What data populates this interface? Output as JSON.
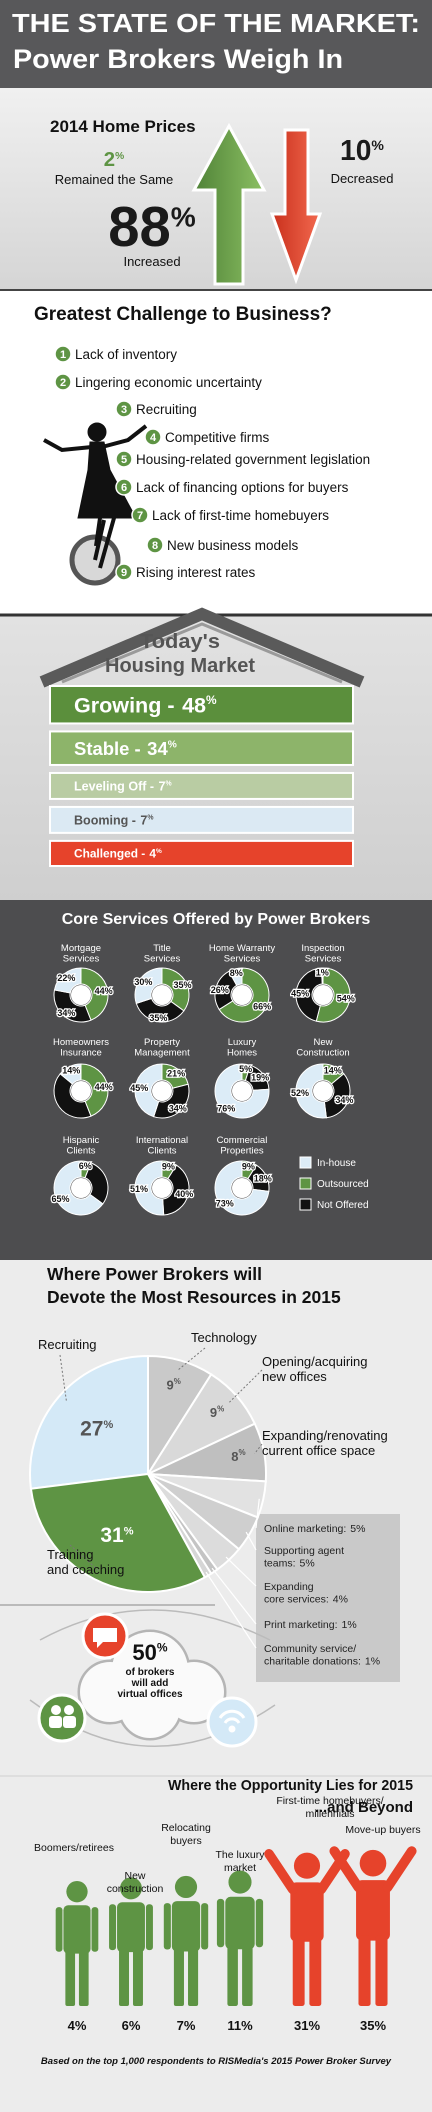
{
  "header": {
    "title": "THE STATE OF THE MARKET:",
    "subtitle": "Power Brokers Weigh In"
  },
  "challenges": {
    "title": "Greatest Challenge to Business?",
    "ranks": [
      1,
      2,
      3,
      4,
      5,
      6,
      7,
      8,
      9
    ],
    "items": [
      "Lack of inventory",
      "Lingering economic uncertainty",
      "Recruiting",
      "Competitive firms",
      "Housing-related government legislation",
      "Lack of financing options for buyers",
      "Lack of first-time homebuyers",
      "New business models",
      "Rising interest rates"
    ]
  },
  "callout": {
    "headline": "50%",
    "text": "of brokers\nwill add\nvirtual offices"
  },
  "footnote": "Based on the top 1,000 respondents to RISMedia's 2015 Power Broker Survey",
  "chart_data": [
    {
      "type": "stat",
      "title": "2014 Home Prices",
      "categories": [
        "Remained the Same",
        "Increased",
        "Decreased"
      ],
      "values": [
        2,
        88,
        10
      ],
      "value_labels": [
        "2%",
        "88%",
        "10%"
      ],
      "colors": [
        "#5e9444",
        "#1a1a1a",
        "#1a1a1a"
      ]
    },
    {
      "type": "hbar",
      "title": "Today's",
      "subtitle": "Housing Market",
      "categories": [
        "Growing -",
        "Stable -",
        "Leveling Off -",
        "Booming -",
        "Challenged -"
      ],
      "values": [
        48,
        34,
        7,
        7,
        4
      ],
      "value_labels": [
        "48%",
        "34%",
        "7%",
        "7%",
        "4%"
      ],
      "colors": [
        "#5b8f3c",
        "#8db46a",
        "#b9cca3",
        "#dbe9f3",
        "#e6432b"
      ]
    },
    {
      "type": "donut",
      "title": "Core Services Offered by Power Brokers",
      "categories": [
        "Mortgage\nServices",
        "Title\nServices",
        "Home Warranty\nServices",
        "Inspection\nServices",
        "Homeowners\nInsurance",
        "Property\nManagement",
        "Luxury\nHomes",
        "New\nConstruction",
        "Hispanic\nClients",
        "International\nClients",
        "Commercial\nProperties"
      ],
      "series": [
        {
          "name": "In-house",
          "color": "#dcecf7",
          "values": [
            22,
            30,
            8,
            1,
            14,
            45,
            76,
            52,
            65,
            51,
            73
          ],
          "value_labels": [
            "22%",
            "30%",
            "8%",
            "1%",
            "14%",
            "45%",
            "76%",
            "52%",
            "65%",
            "51%",
            "73%"
          ]
        },
        {
          "name": "Outsourced",
          "color": "#5e9444",
          "values": [
            44,
            35,
            66,
            54,
            44,
            21,
            5,
            14,
            6,
            9,
            9
          ],
          "value_labels": [
            "44%",
            "35%",
            "66%",
            "54%",
            "44%",
            "21%",
            "5%",
            "14%",
            "6%",
            "9%",
            "9%"
          ]
        },
        {
          "name": "Not Offered",
          "color": "#111111",
          "values": [
            34,
            35,
            26,
            45,
            42,
            34,
            19,
            34,
            29,
            40,
            18
          ],
          "value_labels": [
            "34%",
            "35%",
            "26%",
            "45%",
            null,
            "34%",
            "19%",
            "34%",
            null,
            "40%",
            "18%"
          ]
        }
      ]
    },
    {
      "type": "pie",
      "title": "Where Power Brokers will\nDevote the Most Resources in 2015",
      "categories": [
        "Recruiting",
        "Technology",
        "Opening/acquiring\nnew offices",
        "Expanding/renovating\ncurrent office space",
        "Online marketing:",
        "Supporting agent\nteams:",
        "Expanding\ncore services:",
        "Print marketing:",
        "Community service/\ncharitable donations:",
        "Training\nand coaching"
      ],
      "values": [
        27,
        9,
        9,
        8,
        5,
        5,
        4,
        1,
        1,
        31
      ],
      "value_labels": [
        "27%",
        "9%",
        "9%",
        "8%",
        "5%",
        "5%",
        "4%",
        "1%",
        "1%",
        "31%"
      ],
      "colors": [
        "#d4e9f7",
        "#c9c9c9",
        "#d9d9d9",
        "#bfbfbf",
        "#e2e2e2",
        "#cfcfcf",
        "#dcdcdc",
        "#c4c4c4",
        "#d6d6d6",
        "#5e9444"
      ]
    },
    {
      "type": "figures",
      "title": "Where the Opportunity Lies for 2015",
      "subtitle": "...and Beyond",
      "categories": [
        "Boomers/retirees",
        "New\nconstruction",
        "Relocating\nbuyers",
        "The luxury\nmarket",
        "First-time homebuyers/\nmillennials",
        "Move-up buyers"
      ],
      "values": [
        4,
        6,
        7,
        11,
        31,
        35
      ],
      "value_labels": [
        "4%",
        "6%",
        "7%",
        "11%",
        "31%",
        "35%"
      ],
      "colors": [
        "#5e9444",
        "#5e9444",
        "#5e9444",
        "#5e9444",
        "#e6432b",
        "#e6432b"
      ]
    }
  ]
}
